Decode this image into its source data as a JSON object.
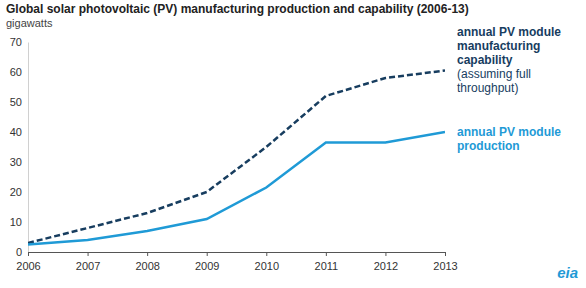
{
  "chart_data": {
    "type": "line",
    "title": "Global solar photovoltaic (PV) manufacturing production and capability (2006-13)",
    "y_label": "gigawatts",
    "categories": [
      "2006",
      "2007",
      "2008",
      "2009",
      "2010",
      "2011",
      "2012",
      "2013"
    ],
    "series": [
      {
        "name": "annual PV module manufacturing capability",
        "note": "(assuming full throughput)",
        "color": "#173d5f",
        "line_style": "dashed",
        "values": [
          3,
          8,
          13,
          20,
          35,
          52,
          58,
          60.5
        ]
      },
      {
        "name": "annual PV module production",
        "color": "#1f9ad6",
        "line_style": "solid",
        "values": [
          2.5,
          4,
          7,
          11,
          21.5,
          36.5,
          36.5,
          40
        ]
      }
    ],
    "ylim": [
      0,
      70
    ],
    "yticks": [
      0,
      10,
      20,
      30,
      40,
      50,
      60,
      70
    ],
    "grid": false,
    "logo_text": "eia"
  }
}
